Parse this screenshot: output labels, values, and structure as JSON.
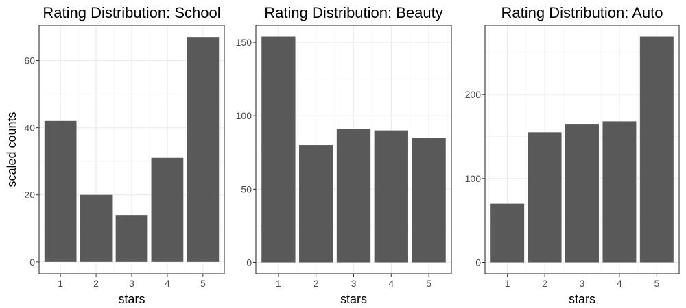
{
  "chart_data": [
    {
      "type": "bar",
      "title": "Rating Distribution: School",
      "xlabel": "stars",
      "ylabel": "scaled counts",
      "categories": [
        "1",
        "2",
        "3",
        "4",
        "5"
      ],
      "values": [
        42,
        20,
        14,
        31,
        67
      ],
      "ylim": [
        -3.5,
        70.5
      ],
      "yticks": [
        0,
        20,
        40,
        60
      ],
      "grid": true,
      "bar_color": "#595959"
    },
    {
      "type": "bar",
      "title": "Rating Distribution: Beauty",
      "xlabel": "stars",
      "ylabel": "",
      "categories": [
        "1",
        "2",
        "3",
        "4",
        "5"
      ],
      "values": [
        154,
        80,
        91,
        90,
        85
      ],
      "ylim": [
        -7.7,
        161.7
      ],
      "yticks": [
        0,
        50,
        100,
        150
      ],
      "grid": true,
      "bar_color": "#595959"
    },
    {
      "type": "bar",
      "title": "Rating Distribution: Auto",
      "xlabel": "stars",
      "ylabel": "",
      "categories": [
        "1",
        "2",
        "3",
        "4",
        "5"
      ],
      "values": [
        70,
        155,
        165,
        168,
        269
      ],
      "ylim": [
        -13.45,
        282.45
      ],
      "yticks": [
        0,
        100,
        200
      ],
      "grid": true,
      "bar_color": "#595959"
    }
  ]
}
